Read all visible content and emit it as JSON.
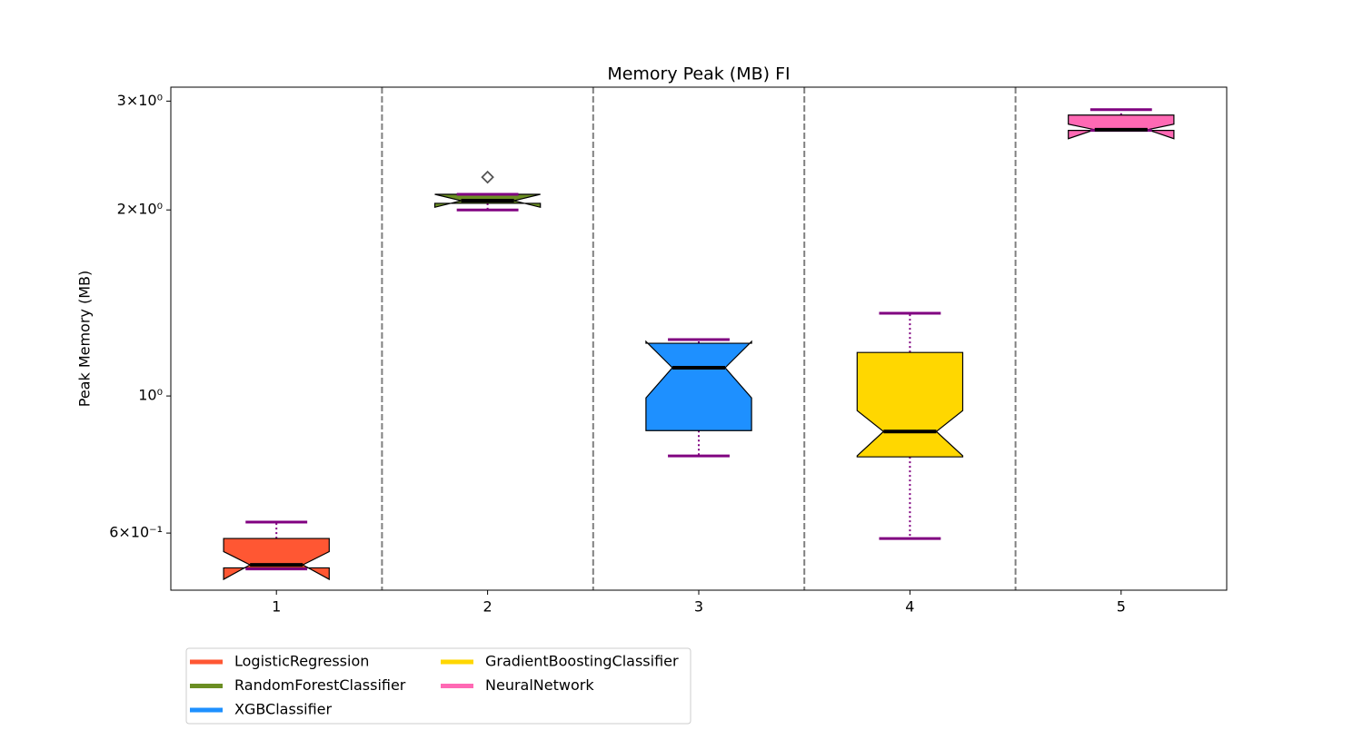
{
  "chart_data": {
    "type": "box",
    "title": "Memory Peak (MB) FI",
    "y_label": "Peak Memory (MB)",
    "y_scale": "log",
    "categories": [
      "1",
      "2",
      "3",
      "4",
      "5"
    ],
    "ylim": [
      0.485,
      3.16
    ],
    "yticks": [
      {
        "value": 3,
        "label": "3×10⁰"
      },
      {
        "value": 2,
        "label": "2×10⁰"
      },
      {
        "value": 1,
        "label": "10⁰"
      },
      {
        "value": 0.6,
        "label": "6×10⁻¹"
      }
    ],
    "whisker_color": "#800080",
    "separator_lines": true,
    "series": [
      {
        "name": "LogisticRegression",
        "color": "#FF5733",
        "whislo": 0.525,
        "q1": 0.527,
        "median": 0.533,
        "q3": 0.588,
        "whishi": 0.625,
        "notch": [
          0.505,
          0.56
        ],
        "outliers": []
      },
      {
        "name": "RandomForestClassifier",
        "color": "#6B8E23",
        "whislo": 2.0,
        "q1": 2.05,
        "median": 2.07,
        "q3": 2.12,
        "whishi": 2.12,
        "notch": [
          2.02,
          2.12
        ],
        "outliers": [
          2.26
        ]
      },
      {
        "name": "XGBClassifier",
        "color": "#1E90FF",
        "whislo": 0.8,
        "q1": 0.879,
        "median": 1.111,
        "q3": 1.217,
        "whishi": 1.234,
        "notch": [
          0.993,
          1.225
        ],
        "outliers": []
      },
      {
        "name": "GradientBoostingClassifier",
        "color": "#FFD700",
        "whislo": 0.588,
        "q1": 0.797,
        "median": 0.876,
        "q3": 1.176,
        "whishi": 1.361,
        "notch": [
          0.8,
          0.947
        ],
        "outliers": []
      },
      {
        "name": "NeuralNetwork",
        "color": "#FF69B4",
        "whislo": 2.69,
        "q1": 2.69,
        "median": 2.697,
        "q3": 2.848,
        "whishi": 2.906,
        "notch": [
          2.608,
          2.753
        ],
        "outliers": []
      }
    ]
  }
}
